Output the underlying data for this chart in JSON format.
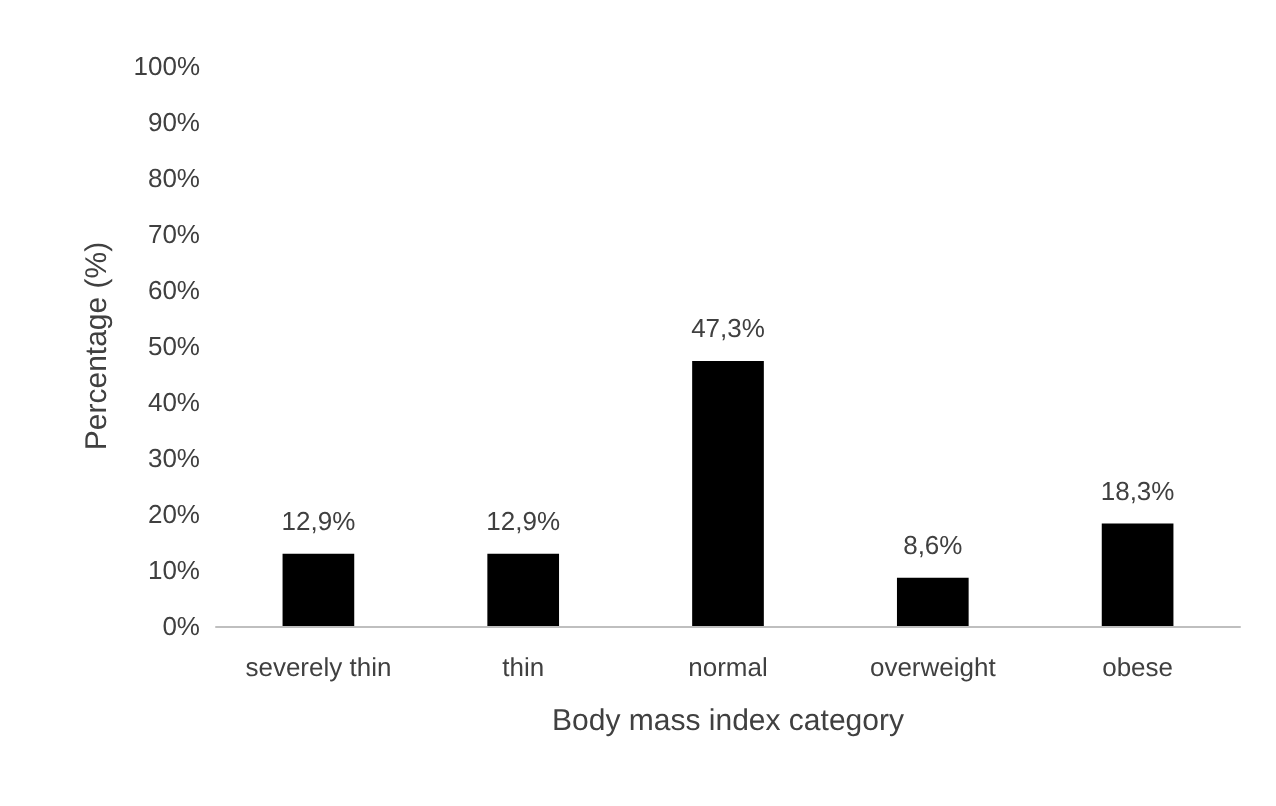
{
  "chart_data": {
    "type": "bar",
    "xlabel": "Body mass index category",
    "ylabel": "Percentage (%)",
    "categories": [
      "severely thin",
      "thin",
      "normal",
      "overweight",
      "obese"
    ],
    "values": [
      12.9,
      12.9,
      47.3,
      8.6,
      18.3
    ],
    "color": "#000000",
    "value_labels": [
      "12,9%",
      "12,9%",
      "47,3%",
      "8,6%",
      "18,3%"
    ],
    "ylim": [
      0,
      100
    ],
    "yticks": [
      {
        "value": 0,
        "label": "0%"
      },
      {
        "value": 10,
        "label": "10%"
      },
      {
        "value": 20,
        "label": "20%"
      },
      {
        "value": 30,
        "label": "30%"
      },
      {
        "value": 40,
        "label": "40%"
      },
      {
        "value": 50,
        "label": "50%"
      },
      {
        "value": 60,
        "label": "60%"
      },
      {
        "value": 70,
        "label": "70%"
      },
      {
        "value": 80,
        "label": "80%"
      },
      {
        "value": 90,
        "label": "90%"
      },
      {
        "value": 100,
        "label": "100%"
      }
    ],
    "grid": false
  }
}
